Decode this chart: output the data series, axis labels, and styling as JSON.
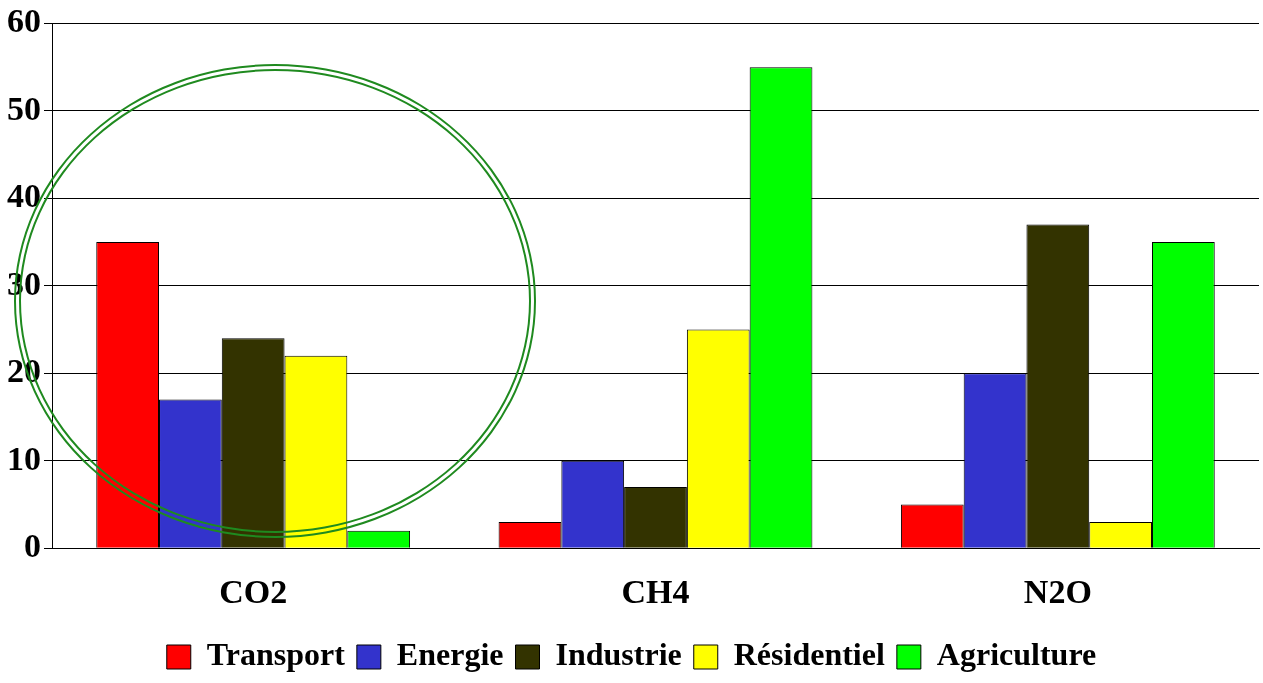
{
  "chart_data": {
    "type": "bar",
    "categories": [
      "CO2",
      "CH4",
      "N2O"
    ],
    "series": [
      {
        "name": "Transport",
        "color": "#ff0000",
        "values": [
          35,
          3,
          5
        ]
      },
      {
        "name": "Energie",
        "color": "#3333cc",
        "values": [
          17,
          10,
          20
        ]
      },
      {
        "name": "Industrie",
        "color": "#333300",
        "values": [
          24,
          7,
          37
        ]
      },
      {
        "name": "Résidentiel",
        "color": "#ffff00",
        "values": [
          22,
          25,
          3
        ]
      },
      {
        "name": "Agriculture",
        "color": "#00ff00",
        "values": [
          2,
          55,
          35
        ]
      }
    ],
    "ylim": [
      0,
      60
    ],
    "yticks": [
      0,
      10,
      20,
      30,
      40,
      50,
      60
    ],
    "grid": "y",
    "legend": "bottom"
  }
}
